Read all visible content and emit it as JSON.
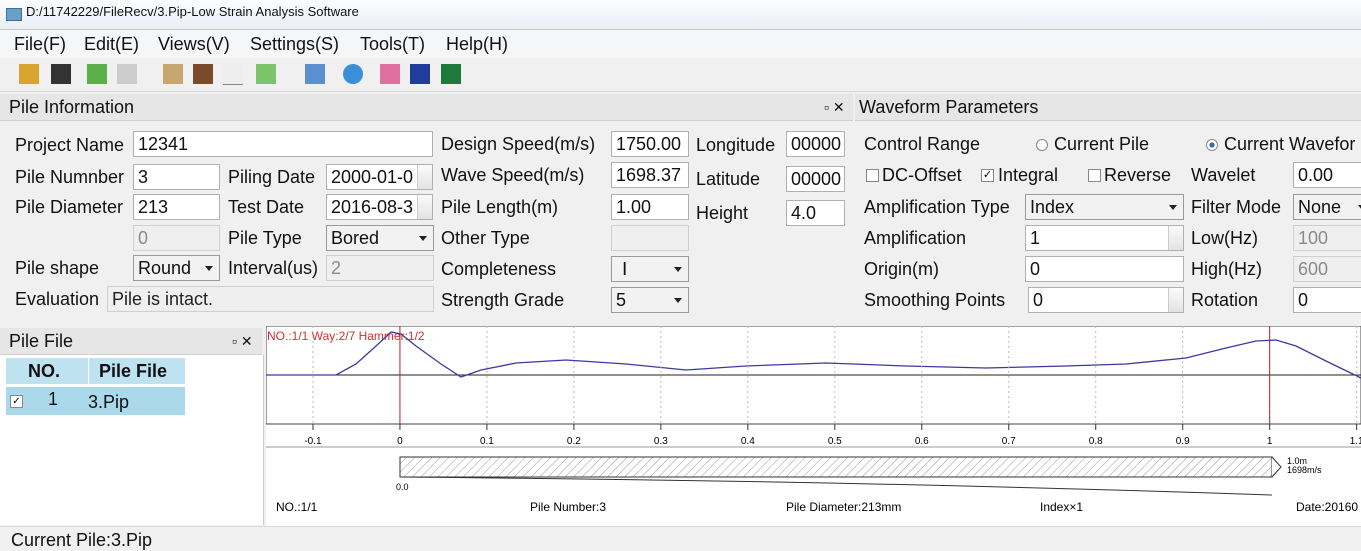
{
  "window": {
    "title": "D:/11742229/FileRecv/3.Pip-Low Strain Analysis Software"
  },
  "menu": [
    "File(F)",
    "Edit(E)",
    "Views(V)",
    "Settings(S)",
    "Tools(T)",
    "Help(H)"
  ],
  "pile_information": {
    "title": "Pile Information",
    "project_name": {
      "label": "Project Name",
      "value": "12341"
    },
    "pile_number": {
      "label": "Pile Numnber",
      "value": "3"
    },
    "piling_date": {
      "label": "Piling Date",
      "value": "2000-01-0"
    },
    "pile_diameter": {
      "label": "Pile Diameter",
      "value": "213"
    },
    "test_date": {
      "label": "Test Date",
      "value": "2016-08-3"
    },
    "unlabeled": {
      "value": "0"
    },
    "pile_type": {
      "label": "Pile Type",
      "value": "Bored"
    },
    "pile_shape": {
      "label": "Pile shape",
      "value": "Round"
    },
    "interval": {
      "label": "Interval(us)",
      "value": "2"
    },
    "evaluation": {
      "label": "Evaluation",
      "value": "Pile is intact."
    },
    "design_speed": {
      "label": "Design Speed(m/s)",
      "value": "1750.00"
    },
    "wave_speed": {
      "label": "Wave Speed(m/s)",
      "value": "1698.37"
    },
    "pile_length": {
      "label": "Pile Length(m)",
      "value": "1.00"
    },
    "other_type": {
      "label": "Other Type"
    },
    "completeness": {
      "label": "Completeness",
      "value": "Ⅰ"
    },
    "strength_grade": {
      "label": "Strength Grade",
      "value": "5"
    },
    "longitude": {
      "label": "Longitude",
      "value": "00000"
    },
    "latitude": {
      "label": "Latitude",
      "value": "00000"
    },
    "height": {
      "label": "Height",
      "value": "4.0"
    }
  },
  "waveform_parameters": {
    "title": "Waveform Parameters",
    "control_range": {
      "label": "Control Range",
      "options": [
        "Current Pile",
        "Current Wavefor"
      ]
    },
    "dc_offset": "DC-Offset",
    "integral": "Integral",
    "reverse": "Reverse",
    "wavelet": {
      "label": "Wavelet",
      "value": "0.00"
    },
    "amplification_type": {
      "label": "Amplification Type",
      "value": "Index"
    },
    "filter_mode": {
      "label": "Filter Mode",
      "value": "None"
    },
    "amplification": {
      "label": "Amplification",
      "value": "1"
    },
    "low": {
      "label": "Low(Hz)",
      "value": "100"
    },
    "origin": {
      "label": "Origin(m)",
      "value": "0"
    },
    "high": {
      "label": "High(Hz)",
      "value": "600"
    },
    "smoothing_points": {
      "label": "Smoothing Points",
      "value": "0"
    },
    "rotation": {
      "label": "Rotation",
      "value": "0"
    }
  },
  "pile_file": {
    "title": "Pile File",
    "columns": [
      "NO.",
      "Pile File"
    ],
    "rows": [
      [
        "1",
        "3.Pip"
      ]
    ]
  },
  "waveform": {
    "type": "line",
    "annotation": "NO.:1/1 Way:2/7 Hammer:1/2",
    "xlim": [
      -0.154,
      1.105
    ],
    "xticks": [
      -0.1,
      0,
      0.1,
      0.2,
      0.3,
      0.4,
      0.5,
      0.6,
      0.7,
      0.8,
      0.9,
      1,
      1.1
    ]
  },
  "pile_diagram": {
    "start_label": "0.0",
    "length_label": "1.0m",
    "speed_label": "1698m/s",
    "footer": [
      "NO.:1/1",
      "Pile Number:3",
      "Pile Diameter:213mm",
      "Index×1",
      "Date:20160"
    ]
  },
  "status_bar": "Current Pile:3.Pip"
}
